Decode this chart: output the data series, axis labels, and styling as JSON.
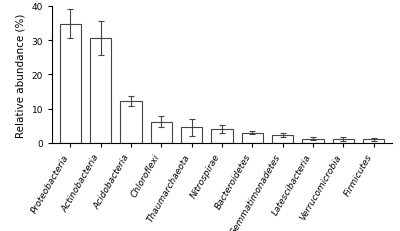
{
  "categories": [
    "Proteobacteria",
    "Actinobacteria",
    "Acidobacteria",
    "Chloroflexi",
    "Thaumarchaeota",
    "Nitrospirae",
    "Bacteroidetes",
    "Gemmatimonadetes",
    "Latescibacteria",
    "Verrucomicrobia",
    "Firmicutes"
  ],
  "values": [
    34.8,
    30.7,
    12.2,
    6.2,
    4.5,
    4.0,
    3.0,
    2.3,
    1.2,
    1.1,
    1.0
  ],
  "errors": [
    4.2,
    5.0,
    1.5,
    1.5,
    2.5,
    1.2,
    0.5,
    0.5,
    0.5,
    0.5,
    0.4
  ],
  "ylabel": "Relative abundance (%)",
  "ylim": [
    0,
    40
  ],
  "yticks": [
    0,
    10,
    20,
    30,
    40
  ],
  "bar_color": "#ffffff",
  "bar_edgecolor": "#444444",
  "error_color": "#444444",
  "bg_color": "#ffffff",
  "bar_width": 0.7,
  "tick_fontsize": 6.5,
  "ylabel_fontsize": 7.5,
  "label_rotation": 60,
  "figwidth": 4.0,
  "figheight": 2.32,
  "dpi": 100
}
